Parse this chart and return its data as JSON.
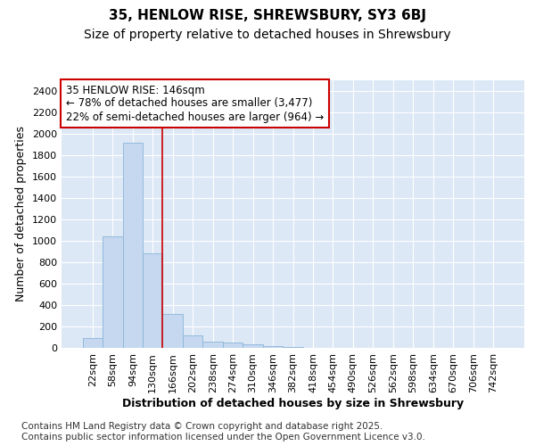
{
  "title1": "35, HENLOW RISE, SHREWSBURY, SY3 6BJ",
  "title2": "Size of property relative to detached houses in Shrewsbury",
  "xlabel": "Distribution of detached houses by size in Shrewsbury",
  "ylabel": "Number of detached properties",
  "categories": [
    "22sqm",
    "58sqm",
    "94sqm",
    "130sqm",
    "166sqm",
    "202sqm",
    "238sqm",
    "274sqm",
    "310sqm",
    "346sqm",
    "382sqm",
    "418sqm",
    "454sqm",
    "490sqm",
    "526sqm",
    "562sqm",
    "598sqm",
    "634sqm",
    "670sqm",
    "706sqm",
    "742sqm"
  ],
  "values": [
    90,
    1040,
    1920,
    880,
    320,
    120,
    60,
    50,
    30,
    20,
    5,
    3,
    2,
    1,
    1,
    1,
    1,
    1,
    1,
    1,
    1
  ],
  "bar_color": "#c5d8f0",
  "bar_edge_color": "#8ab4d8",
  "vline_color": "#cc0000",
  "vline_position": 3.5,
  "annotation_text": "35 HENLOW RISE: 146sqm\n← 78% of detached houses are smaller (3,477)\n22% of semi-detached houses are larger (964) →",
  "annotation_box_facecolor": "white",
  "annotation_box_edgecolor": "#cc0000",
  "ylim": [
    0,
    2500
  ],
  "yticks": [
    0,
    200,
    400,
    600,
    800,
    1000,
    1200,
    1400,
    1600,
    1800,
    2000,
    2200,
    2400
  ],
  "fig_facecolor": "#ffffff",
  "plot_bg_color": "#dce8f5",
  "grid_color": "#ffffff",
  "footer": "Contains HM Land Registry data © Crown copyright and database right 2025.\nContains public sector information licensed under the Open Government Licence v3.0.",
  "title_fontsize": 11,
  "subtitle_fontsize": 10,
  "axis_label_fontsize": 9,
  "tick_fontsize": 8,
  "annotation_fontsize": 8.5,
  "footer_fontsize": 7.5
}
